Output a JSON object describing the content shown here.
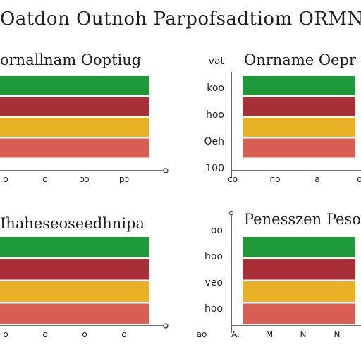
{
  "page": {
    "title": "Oatdon Outnoh Parpofsadtiom ORMNY"
  },
  "colors": {
    "green": "#1f9a3b",
    "red": "#a72f35",
    "yellow": "#e8b125",
    "salmon": "#d85d52",
    "axis": "#444444"
  },
  "chart_data": [
    {
      "type": "bar",
      "orientation": "horizontal",
      "title": "ornallnam Ooptiug",
      "categories": [
        "",
        "",
        "",
        ""
      ],
      "series": [
        {
          "values": [
            1,
            1,
            1,
            1
          ]
        }
      ],
      "bar_colors": [
        "#1f9a3b",
        "#a72f35",
        "#e8b125",
        "#d85d52"
      ],
      "y_tick_labels": [],
      "x_tick_labels": [
        "o",
        "o",
        "ɔɔ",
        "pɔ"
      ],
      "xlim": [
        0,
        1.05
      ],
      "grid": false
    },
    {
      "type": "bar",
      "orientation": "horizontal",
      "title": "Onrname Oepr",
      "categories": [
        "",
        "",
        "",
        ""
      ],
      "series": [
        {
          "values": [
            1,
            1,
            1,
            1
          ]
        }
      ],
      "bar_colors": [
        "#1f9a3b",
        "#a72f35",
        "#e8b125",
        "#d85d52"
      ],
      "y_tick_labels": [
        "vat",
        "koo",
        "hoo",
        "Oeh",
        "100"
      ],
      "x_tick_labels": [
        "co",
        "no",
        "a",
        "o"
      ],
      "xlim": [
        0,
        1.05
      ],
      "grid": false
    },
    {
      "type": "bar",
      "orientation": "horizontal",
      "title": "Ihaheseoseedhnipa",
      "categories": [
        "",
        "",
        "",
        ""
      ],
      "series": [
        {
          "values": [
            1,
            1,
            1,
            1
          ]
        }
      ],
      "bar_colors": [
        "#1f9a3b",
        "#a72f35",
        "#e8b125",
        "#d85d52"
      ],
      "y_tick_labels": [],
      "x_tick_labels": [
        "o",
        "o",
        "o",
        "o"
      ],
      "xlim": [
        0,
        1.05
      ],
      "grid": false
    },
    {
      "type": "bar",
      "orientation": "horizontal",
      "title": "Penesszen Pesoa",
      "categories": [
        "",
        "",
        "",
        ""
      ],
      "series": [
        {
          "values": [
            1,
            1,
            1,
            1
          ]
        }
      ],
      "bar_colors": [
        "#1f9a3b",
        "#a72f35",
        "#e8b125",
        "#d85d52"
      ],
      "y_tick_labels": [
        "oo",
        "hoo",
        "veo",
        "hoo"
      ],
      "x_tick_labels": [
        "ao",
        "A.",
        "M",
        "N",
        "N"
      ],
      "xlim": [
        0,
        1.05
      ],
      "grid": false
    }
  ]
}
